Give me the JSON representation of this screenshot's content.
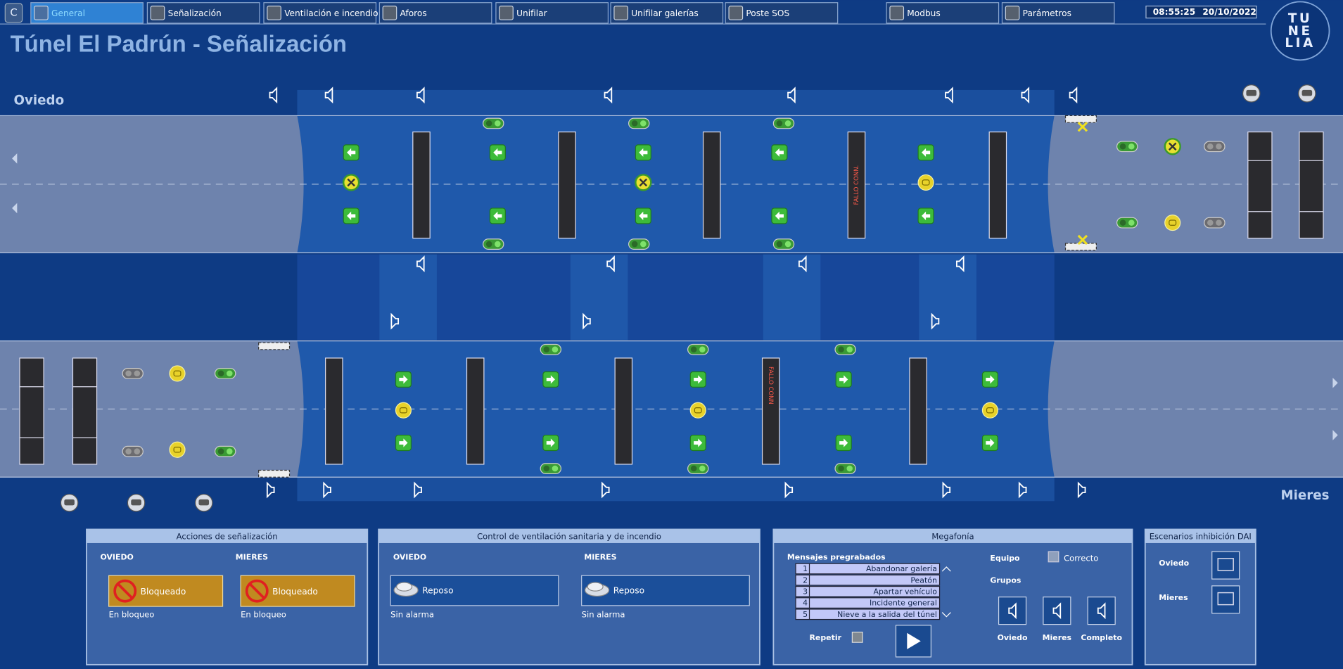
{
  "header": {
    "app_icon": "C",
    "tabs": [
      "General",
      "Señalización",
      "Ventilación e incendio",
      "Aforos",
      "Unifilar",
      "Unifilar galerías",
      "Poste SOS",
      "Modbus",
      "Parámetros"
    ],
    "time": "08:55:25",
    "date": "20/10/2022",
    "logo": [
      "TU",
      "NE",
      "LIA"
    ]
  },
  "title": "Túnel El Padrún - Señalización",
  "tunnel": {
    "left_label": "Oviedo",
    "right_label": "Mieres",
    "upper_fault": "FALLO CONN.",
    "lower_fault": "FALLO CONN"
  },
  "panels": {
    "signaling": {
      "title": "Acciones de señalización",
      "columns": [
        {
          "name": "OVIEDO",
          "state": "Bloqueado",
          "status": "En bloqueo"
        },
        {
          "name": "MIERES",
          "state": "Bloqueado",
          "status": "En bloqueo"
        }
      ]
    },
    "ventilation": {
      "title": "Control de ventilación sanitaria y de incendio",
      "columns": [
        {
          "name": "OVIEDO",
          "state": "Reposo",
          "status": "Sin alarma"
        },
        {
          "name": "MIERES",
          "state": "Reposo",
          "status": "Sin alarma"
        }
      ]
    },
    "megaphone": {
      "title": "Megafonía",
      "messages_label": "Mensajes pregrabados",
      "messages": [
        {
          "number": 1,
          "text": "Abandonar galería"
        },
        {
          "number": 2,
          "text": "Peatón"
        },
        {
          "number": 3,
          "text": "Apartar vehículo"
        },
        {
          "number": 4,
          "text": "Incidente general"
        },
        {
          "number": 5,
          "text": "Nieve a la salida del túnel"
        }
      ],
      "equipment_label": "Equipo",
      "equipment_status": "Correcto",
      "groups_label": "Grupos",
      "groups": [
        "Oviedo",
        "Mieres",
        "Completo"
      ],
      "repeat_label": "Repetir"
    },
    "dai": {
      "title": "Escenarios inhibición DAI",
      "rows": [
        "Oviedo",
        "Mieres"
      ]
    }
  }
}
